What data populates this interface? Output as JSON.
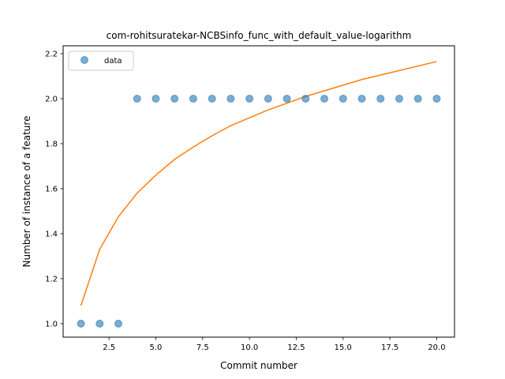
{
  "chart_data": {
    "type": "scatter",
    "title": "com-rohitsuratekar-NCBSinfo_func_with_default_value-logarithm",
    "xlabel": "Commit number",
    "ylabel": "Number of instance of a feature",
    "xlim": [
      0.05,
      20.95
    ],
    "ylim": [
      0.94,
      2.235
    ],
    "x_ticks": [
      2.5,
      5.0,
      7.5,
      10.0,
      12.5,
      15.0,
      17.5,
      20.0
    ],
    "x_tick_labels": [
      "2.5",
      "5.0",
      "7.5",
      "10.0",
      "12.5",
      "15.0",
      "17.5",
      "20.0"
    ],
    "y_ticks": [
      1.0,
      1.2,
      1.4,
      1.6,
      1.8,
      2.0,
      2.2
    ],
    "y_tick_labels": [
      "1.0",
      "1.2",
      "1.4",
      "1.6",
      "1.8",
      "2.0",
      "2.2"
    ],
    "grid": false,
    "legend": {
      "position": "upper-left",
      "entries": [
        "data"
      ]
    },
    "series": [
      {
        "name": "data",
        "kind": "scatter",
        "color": "#1f77b4",
        "x": [
          1,
          2,
          3,
          4,
          5,
          6,
          7,
          8,
          9,
          10,
          11,
          12,
          13,
          14,
          15,
          16,
          17,
          18,
          19,
          20
        ],
        "y": [
          1,
          1,
          1,
          2,
          2,
          2,
          2,
          2,
          2,
          2,
          2,
          2,
          2,
          2,
          2,
          2,
          2,
          2,
          2,
          2
        ]
      },
      {
        "kind": "line",
        "color": "#ff7f0e",
        "x": [
          1,
          2,
          3,
          4,
          5,
          6,
          7,
          8,
          9,
          10,
          11,
          12,
          13,
          14,
          15,
          16,
          17,
          18,
          19,
          20
        ],
        "y": [
          1.08,
          1.33,
          1.475,
          1.58,
          1.66,
          1.73,
          1.785,
          1.835,
          1.88,
          1.915,
          1.95,
          1.98,
          2.01,
          2.035,
          2.06,
          2.085,
          2.105,
          2.125,
          2.145,
          2.165
        ]
      }
    ]
  }
}
